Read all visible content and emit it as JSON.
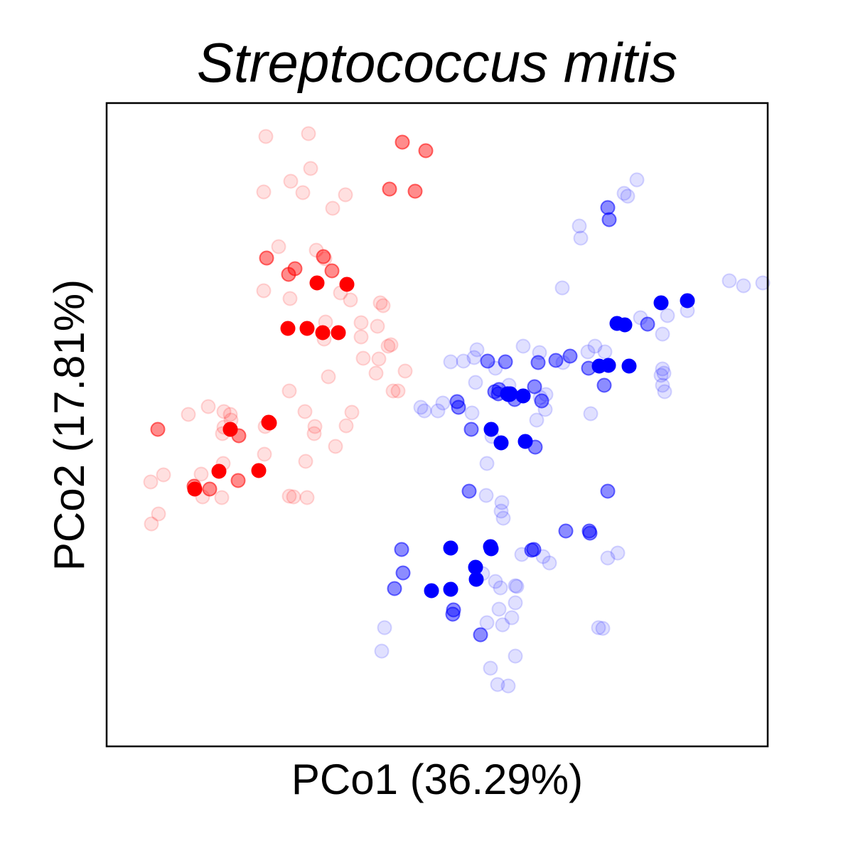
{
  "chart_data": {
    "type": "scatter",
    "title": "Streptococcus mitis",
    "xlabel": "PCo1 (36.29%)",
    "ylabel": "PCo2 (17.81%)",
    "xlim": [
      0,
      930
    ],
    "ylim": [
      0,
      905
    ],
    "grid": false,
    "ticks": false,
    "legend": "none",
    "series": [
      {
        "color": "#ff0000",
        "alpha": 0.12,
        "points": [
          [
            224,
            858
          ],
          [
            284,
            862
          ],
          [
            287,
            813
          ],
          [
            259,
            795
          ],
          [
            221,
            780
          ],
          [
            276,
            779
          ],
          [
            336,
            776
          ],
          [
            318,
            757
          ],
          [
            307,
            686
          ],
          [
            295,
            698
          ],
          [
            242,
            703
          ],
          [
            221,
            641
          ],
          [
            329,
            638
          ],
          [
            343,
            628
          ],
          [
            385,
            624
          ],
          [
            389,
            620
          ],
          [
            358,
            596
          ],
          [
            381,
            591
          ],
          [
            358,
            576
          ],
          [
            361,
            546
          ],
          [
            400,
            565
          ],
          [
            396,
            563
          ],
          [
            383,
            545
          ],
          [
            379,
            525
          ],
          [
            420,
            528
          ],
          [
            312,
            520
          ],
          [
            258,
            630
          ],
          [
            308,
            597
          ],
          [
            306,
            573
          ],
          [
            410,
            500
          ],
          [
            257,
            500
          ],
          [
            403,
            500
          ],
          [
            345,
            470
          ],
          [
            279,
            471
          ],
          [
            337,
            451
          ],
          [
            293,
            450
          ],
          [
            292,
            440
          ],
          [
            322,
            422
          ],
          [
            165,
            471
          ],
          [
            223,
            450
          ],
          [
            222,
            411
          ],
          [
            280,
            401
          ],
          [
            263,
            351
          ],
          [
            282,
            350
          ],
          [
            257,
            352
          ],
          [
            62,
            372
          ],
          [
            80,
            382
          ],
          [
            73,
            327
          ],
          [
            63,
            313
          ],
          [
            133,
            383
          ],
          [
            135,
            351
          ],
          [
            162,
            350
          ],
          [
            164,
            398
          ],
          [
            163,
            440
          ],
          [
            165,
            449
          ],
          [
            175,
            459
          ],
          [
            115,
            467
          ],
          [
            174,
            467
          ],
          [
            143,
            478
          ]
        ]
      },
      {
        "color": "#ff0000",
        "alpha": 0.45,
        "points": [
          [
            416,
            850
          ],
          [
            449,
            838
          ],
          [
            398,
            784
          ],
          [
            434,
            781
          ],
          [
            305,
            689
          ],
          [
            317,
            669
          ],
          [
            265,
            672
          ],
          [
            256,
            664
          ],
          [
            174,
            446
          ],
          [
            186,
            437
          ],
          [
            225,
            687
          ],
          [
            145,
            362
          ],
          [
            123,
            366
          ],
          [
            185,
            374
          ],
          [
            72,
            446
          ]
        ]
      },
      {
        "color": "#ff0000",
        "alpha": 1.0,
        "points": [
          [
            296,
            652
          ],
          [
            338,
            650
          ],
          [
            282,
            588
          ],
          [
            326,
            582
          ],
          [
            255,
            588
          ],
          [
            304,
            582
          ],
          [
            228,
            456
          ],
          [
            174,
            446
          ],
          [
            158,
            387
          ],
          [
            214,
            388
          ],
          [
            124,
            362
          ],
          [
            229,
            455
          ]
        ]
      },
      {
        "color": "#0000ff",
        "alpha": 0.12,
        "points": [
          [
            746,
            797
          ],
          [
            728,
            778
          ],
          [
            733,
            774
          ],
          [
            665,
            732
          ],
          [
            667,
            715
          ],
          [
            876,
            655
          ],
          [
            923,
            652
          ],
          [
            896,
            648
          ],
          [
            817,
            613
          ],
          [
            751,
            603
          ],
          [
            789,
            606
          ],
          [
            782,
            580
          ],
          [
            701,
            555
          ],
          [
            782,
            531
          ],
          [
            784,
            525
          ],
          [
            641,
            645
          ],
          [
            586,
            563
          ],
          [
            521,
            558
          ],
          [
            517,
            547
          ],
          [
            502,
            542
          ],
          [
            519,
            512
          ],
          [
            514,
            469
          ],
          [
            466,
            472
          ],
          [
            473,
            483
          ],
          [
            484,
            541
          ],
          [
            609,
            554
          ],
          [
            566,
            508
          ],
          [
            642,
            540
          ],
          [
            677,
            555
          ],
          [
            687,
            563
          ],
          [
            610,
            491
          ],
          [
            617,
            474
          ],
          [
            681,
            468
          ],
          [
            605,
            459
          ],
          [
            447,
            472
          ],
          [
            442,
            477
          ],
          [
            547,
            532
          ],
          [
            535,
            398
          ],
          [
            542,
            436
          ],
          [
            534,
            353
          ],
          [
            556,
            343
          ],
          [
            555,
            331
          ],
          [
            558,
            321
          ],
          [
            618,
            495
          ],
          [
            529,
            243
          ],
          [
            547,
            232
          ],
          [
            554,
            223
          ],
          [
            535,
            174
          ],
          [
            387,
            134
          ],
          [
            391,
            167
          ],
          [
            552,
            193
          ],
          [
            614,
            267
          ],
          [
            623,
            258
          ],
          [
            575,
            226
          ],
          [
            577,
            225
          ],
          [
            785,
            499
          ],
          [
            782,
            508
          ],
          [
            780,
            522
          ],
          [
            705,
            265
          ],
          [
            719,
            272
          ],
          [
            584,
            270
          ],
          [
            557,
            171
          ],
          [
            698,
            166
          ],
          [
            692,
            167
          ],
          [
            570,
            181
          ],
          [
            575,
            202
          ],
          [
            540,
            110
          ],
          [
            550,
            87
          ],
          [
            565,
            85
          ],
          [
            575,
            127
          ]
        ]
      },
      {
        "color": "#0000ff",
        "alpha": 0.45,
        "points": [
          [
            705,
            758
          ],
          [
            707,
            741
          ],
          [
            761,
            594
          ],
          [
            632,
            543
          ],
          [
            607,
            540
          ],
          [
            678,
            532
          ],
          [
            700,
            508
          ],
          [
            612,
            486
          ],
          [
            513,
            446
          ],
          [
            574,
            488
          ],
          [
            561,
            541
          ],
          [
            536,
            542
          ],
          [
            546,
            499
          ],
          [
            652,
            549
          ],
          [
            602,
            506
          ],
          [
            552,
            502
          ],
          [
            510,
            359
          ],
          [
            493,
            485
          ],
          [
            495,
            477
          ],
          [
            551,
            496
          ],
          [
            603,
            421
          ],
          [
            646,
            303
          ],
          [
            679,
            303
          ],
          [
            705,
            359
          ],
          [
            680,
            300
          ],
          [
            601,
            277
          ],
          [
            598,
            276
          ],
          [
            415,
            277
          ],
          [
            417,
            244
          ],
          [
            405,
            222
          ],
          [
            487,
            186
          ],
          [
            526,
            157
          ],
          [
            488,
            192
          ]
        ]
      },
      {
        "color": "#0000ff",
        "alpha": 1.0,
        "points": [
          [
            780,
            624
          ],
          [
            817,
            627
          ],
          [
            718,
            595
          ],
          [
            729,
            593
          ],
          [
            706,
            536
          ],
          [
            735,
            535
          ],
          [
            693,
            535
          ],
          [
            586,
            493
          ],
          [
            564,
            496
          ],
          [
            541,
            446
          ],
          [
            567,
            495
          ],
          [
            568,
            496
          ],
          [
            589,
            429
          ],
          [
            565,
            495
          ],
          [
            555,
            427
          ],
          [
            484,
            221
          ],
          [
            520,
            235
          ],
          [
            540,
            281
          ],
          [
            484,
            279
          ],
          [
            457,
            219
          ],
          [
            519,
            252
          ],
          [
            541,
            278
          ]
        ]
      }
    ]
  }
}
